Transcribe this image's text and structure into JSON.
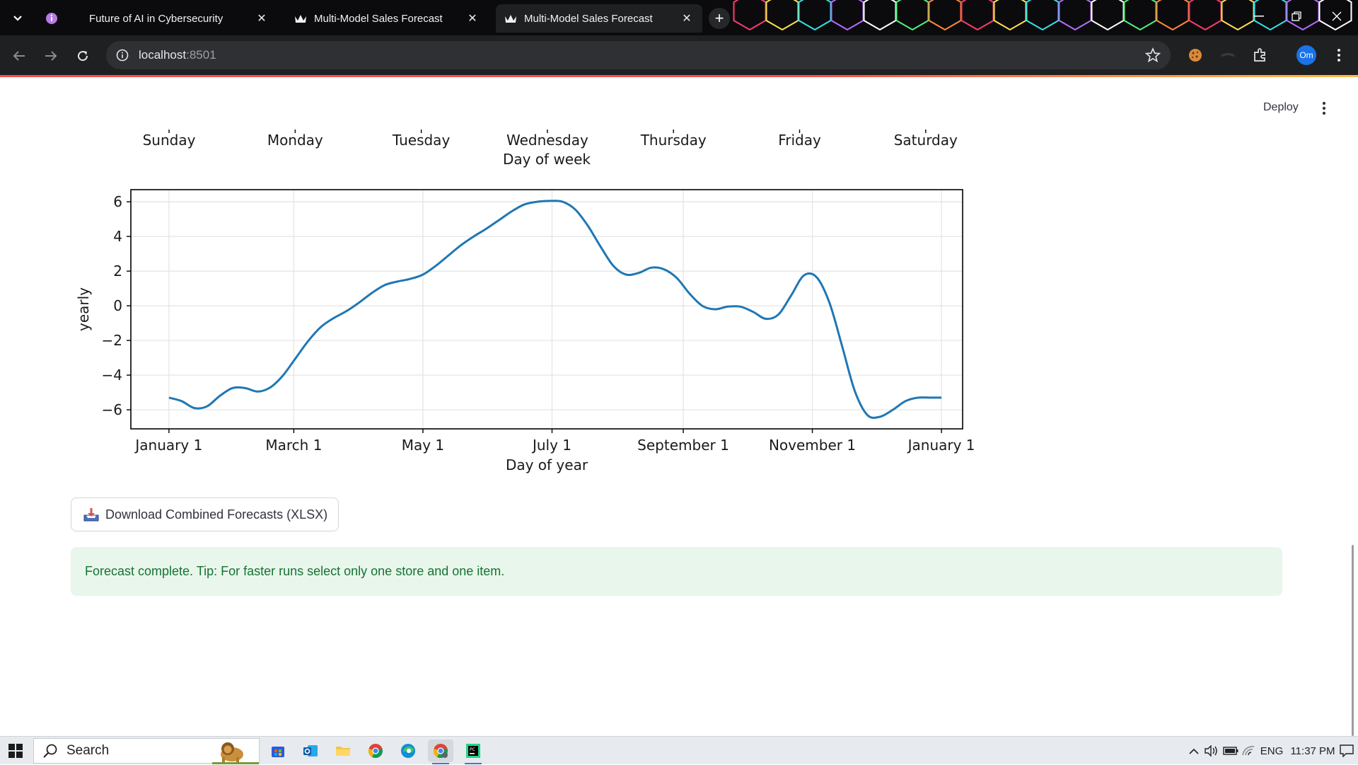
{
  "browser": {
    "tabs": [
      {
        "title": "Future of AI in Cybersecurity",
        "favicon": "info-bubble-icon",
        "active": false
      },
      {
        "title": "Multi-Model Sales Forecast",
        "favicon": "streamlit-crown-icon",
        "active": false
      },
      {
        "title": "Multi-Model Sales Forecast",
        "favicon": "streamlit-crown-icon",
        "active": true
      }
    ],
    "url_host": "localhost",
    "url_port": ":8501",
    "profile_initials": "Om"
  },
  "app": {
    "deploy_label": "Deploy",
    "download_label": "Download Combined Forecasts (XLSX)",
    "success_message": "Forecast complete. Tip: For faster runs select only one store and one item."
  },
  "chart_data": [
    {
      "type": "line",
      "title": "",
      "xlabel": "Day of week",
      "ylabel": "",
      "categories": [
        "Sunday",
        "Monday",
        "Tuesday",
        "Wednesday",
        "Thursday",
        "Friday",
        "Saturday"
      ],
      "note_visible": "only the x-axis of this component is visible (cropped at top)"
    },
    {
      "type": "line",
      "title": "",
      "xlabel": "Day of year",
      "ylabel": "yearly",
      "xticks": [
        "January 1",
        "March 1",
        "May 1",
        "July 1",
        "September 1",
        "November 1",
        "January 1"
      ],
      "xtick_days": [
        0,
        59,
        120,
        181,
        243,
        304,
        365
      ],
      "yticks": [
        -6,
        -4,
        -2,
        0,
        2,
        4,
        6
      ],
      "ylim": [
        -7.1,
        6.7
      ],
      "xlim": [
        -18,
        375
      ],
      "grid": true,
      "series": [
        {
          "color": "#1f77b4",
          "x": [
            0,
            6,
            12,
            18,
            24,
            30,
            36,
            42,
            48,
            54,
            60,
            66,
            72,
            78,
            84,
            90,
            96,
            102,
            108,
            114,
            120,
            126,
            132,
            138,
            144,
            150,
            156,
            162,
            168,
            174,
            180,
            186,
            192,
            198,
            204,
            210,
            216,
            222,
            228,
            234,
            240,
            246,
            252,
            258,
            264,
            270,
            276,
            282,
            288,
            294,
            300,
            306,
            312,
            318,
            324,
            330,
            336,
            342,
            348,
            354,
            360,
            365
          ],
          "y": [
            -5.3,
            -5.5,
            -5.9,
            -5.8,
            -5.2,
            -4.75,
            -4.75,
            -4.95,
            -4.7,
            -4.0,
            -3.0,
            -2.0,
            -1.2,
            -0.7,
            -0.3,
            0.2,
            0.75,
            1.2,
            1.4,
            1.55,
            1.8,
            2.3,
            2.9,
            3.5,
            4.0,
            4.45,
            4.95,
            5.45,
            5.85,
            6.0,
            6.05,
            6.0,
            5.55,
            4.6,
            3.4,
            2.3,
            1.8,
            1.9,
            2.2,
            2.1,
            1.6,
            0.7,
            0.0,
            -0.2,
            -0.05,
            -0.05,
            -0.35,
            -0.75,
            -0.5,
            0.6,
            1.75,
            1.65,
            0.2,
            -2.3,
            -4.9,
            -6.3,
            -6.4,
            -6.0,
            -5.5,
            -5.3,
            -5.3,
            -5.3
          ]
        }
      ]
    }
  ],
  "taskbar": {
    "search_placeholder": "Search",
    "language": "ENG",
    "time": "11:37 PM"
  }
}
